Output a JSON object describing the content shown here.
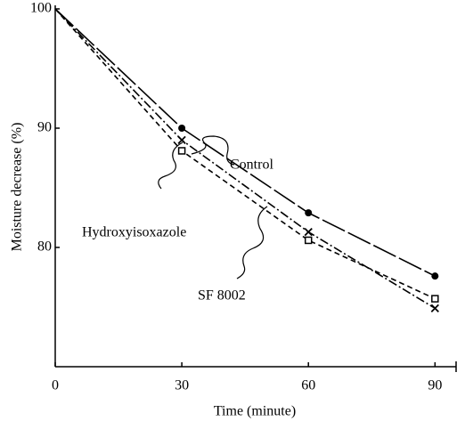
{
  "chart_data": {
    "type": "line",
    "x_label": "Time (minute)",
    "y_label": "Moisture decrease (%)",
    "x": [
      0,
      30,
      60,
      90
    ],
    "series": [
      {
        "name": "Control",
        "color": "#000000",
        "line_style": "longdash",
        "marker": "circle",
        "values": [
          100,
          90.0,
          82.9,
          77.6
        ]
      },
      {
        "name": "Hydroxyisoxazole",
        "color": "#000000",
        "line_style": "dashed",
        "marker": "square",
        "values": [
          100,
          88.1,
          80.6,
          75.7
        ]
      },
      {
        "name": "SF 8002",
        "color": "#000000",
        "line_style": "dashdot",
        "marker": "x",
        "values": [
          100,
          89.0,
          81.3,
          74.9
        ]
      }
    ],
    "xlim": [
      0,
      95
    ],
    "xticks": [
      0,
      30,
      60,
      90
    ],
    "ylim": [
      70,
      100
    ],
    "yticks": [
      80,
      90,
      100
    ],
    "grid": false
  }
}
